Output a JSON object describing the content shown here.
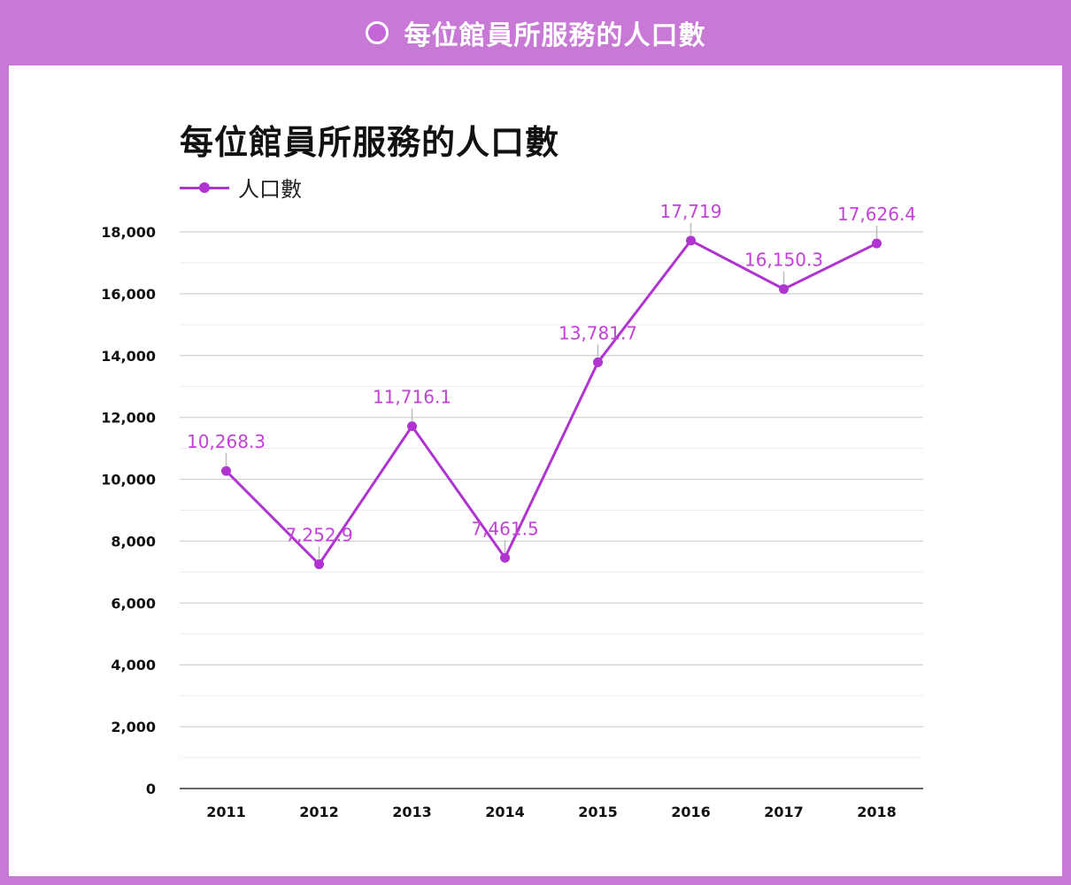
{
  "header": {
    "title": "每位館員所服務的人口數"
  },
  "colors": {
    "frame": "#c879d6",
    "series": "#b035d0",
    "label": "#c242d8",
    "grid": "#d0d0d0"
  },
  "chart_data": {
    "type": "line",
    "title": "每位館員所服務的人口數",
    "xlabel": "",
    "ylabel": "",
    "categories": [
      "2011",
      "2012",
      "2013",
      "2014",
      "2015",
      "2016",
      "2017",
      "2018"
    ],
    "series": [
      {
        "name": "人口數",
        "values": [
          10268.3,
          7252.9,
          11716.1,
          7461.5,
          13781.7,
          17719,
          16150.3,
          17626.4
        ],
        "labels": [
          "10,268.3",
          "7,252.9",
          "11,716.1",
          "7,461.5",
          "13,781.7",
          "17,719",
          "16,150.3",
          "17,626.4"
        ]
      }
    ],
    "ylim": [
      0,
      18000
    ],
    "yticks": [
      0,
      2000,
      4000,
      6000,
      8000,
      10000,
      12000,
      14000,
      16000,
      18000
    ],
    "ytick_labels": [
      "0",
      "2,000",
      "4,000",
      "6,000",
      "8,000",
      "10,000",
      "12,000",
      "14,000",
      "16,000",
      "18,000"
    ],
    "grid": true,
    "legend": "top-left"
  }
}
